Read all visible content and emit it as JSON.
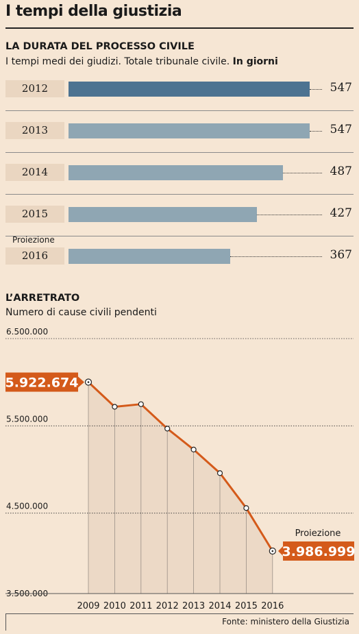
{
  "title": "I tempi della giustizia",
  "section1": {
    "title": "LA DURATA DEL PROCESSO CIVILE",
    "subtitle_plain": "I tempi medi dei giudizi. Totale tribunale civile. ",
    "subtitle_bold": "In giorni",
    "projection_label": "Proiezione"
  },
  "section2": {
    "title": "L’ARRETRATO",
    "subtitle": "Numero di cause civili pendenti",
    "projection_label": "Proiezione",
    "first_value_label": "5.922.674",
    "last_value_label": "3.986.999"
  },
  "source": "Fonte: ministero della Giustizia",
  "colors": {
    "background": "#f6e6d4",
    "bar": "#8fa6b3",
    "bar_highlight": "#4d7391",
    "line": "#d45a1a",
    "area": "#ecd9c6"
  },
  "chart_data": [
    {
      "type": "bar",
      "orientation": "horizontal",
      "categories": [
        "2012",
        "2013",
        "2014",
        "2015",
        "2016"
      ],
      "values": [
        547,
        547,
        487,
        427,
        367
      ],
      "value_labels": [
        "547",
        "547",
        "487",
        "427",
        "367"
      ],
      "highlight_index": 0,
      "projection_index": 4,
      "xlim": [
        0,
        547
      ]
    },
    {
      "type": "area",
      "x": [
        "2009",
        "2010",
        "2011",
        "2012",
        "2013",
        "2014",
        "2015",
        "2016"
      ],
      "values": [
        5922674,
        5640000,
        5670000,
        5390000,
        5150000,
        4880000,
        4480000,
        3986999
      ],
      "ylim": [
        3500000,
        6500000
      ],
      "y_ticks": [
        6500000,
        5500000,
        4500000,
        3500000
      ],
      "y_tick_labels": [
        "6.500.000",
        "5.500.000",
        "4.500.000",
        "3.500.000"
      ],
      "grid": "horizontal-dotted",
      "projection_index": 7
    }
  ]
}
